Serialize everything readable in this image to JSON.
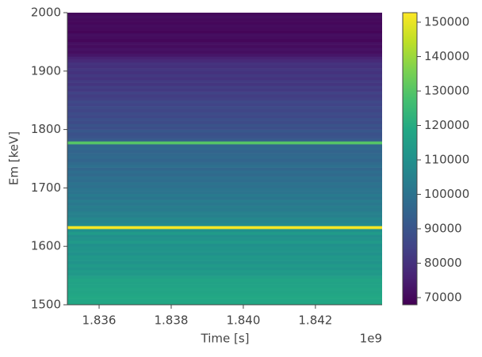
{
  "chart_data": {
    "type": "heatmap",
    "x_label": "Time [s]",
    "y_label": "Em [keV]",
    "x_offset_label": "1e9",
    "xlim": [
      1835120000,
      1843850000
    ],
    "xticks": [
      {
        "value": 1836000000,
        "label": "1.836"
      },
      {
        "value": 1838000000,
        "label": "1.838"
      },
      {
        "value": 1840000000,
        "label": "1.840"
      },
      {
        "value": 1842000000,
        "label": "1.842"
      }
    ],
    "ylim": [
      1500,
      2000
    ],
    "yticks": [
      1500,
      1600,
      1700,
      1800,
      1900,
      2000
    ],
    "colormap": "viridis",
    "clim": [
      67930,
      152760
    ],
    "cticks": [
      70000,
      80000,
      90000,
      100000,
      110000,
      120000,
      130000,
      140000,
      150000
    ],
    "y_edges": [
      1500,
      1505,
      1510,
      1515,
      1520,
      1525,
      1530,
      1535,
      1540,
      1545,
      1550,
      1555,
      1560,
      1565,
      1570,
      1575,
      1580,
      1585,
      1590,
      1595,
      1600,
      1605,
      1610,
      1615,
      1620,
      1625,
      1630,
      1635,
      1640,
      1645,
      1650,
      1655,
      1660,
      1665,
      1670,
      1675,
      1680,
      1685,
      1690,
      1695,
      1700,
      1705,
      1710,
      1715,
      1720,
      1725,
      1730,
      1735,
      1740,
      1745,
      1750,
      1755,
      1760,
      1765,
      1770,
      1775,
      1780,
      1785,
      1790,
      1795,
      1800,
      1805,
      1810,
      1815,
      1820,
      1825,
      1830,
      1835,
      1840,
      1845,
      1850,
      1855,
      1860,
      1865,
      1870,
      1875,
      1880,
      1885,
      1890,
      1895,
      1900,
      1905,
      1910,
      1915,
      1920,
      1925,
      1930,
      1935,
      1940,
      1945,
      1950,
      1955,
      1960,
      1965,
      1970,
      1975,
      1980,
      1985,
      1990,
      1995,
      2000
    ],
    "values": [
      118500,
      118000,
      119000,
      118000,
      117500,
      118000,
      117000,
      116500,
      117500,
      116000,
      113000,
      114000,
      112000,
      113500,
      111000,
      112500,
      113000,
      110500,
      112000,
      111500,
      110000,
      113500,
      111000,
      109500,
      114000,
      110500,
      152000,
      108000,
      106000,
      107000,
      104500,
      105000,
      103000,
      104000,
      102000,
      103500,
      101000,
      102500,
      100500,
      101000,
      99000,
      100000,
      98000,
      99500,
      97000,
      98500,
      96000,
      99000,
      97500,
      95500,
      97000,
      96500,
      95000,
      97000,
      96000,
      130000,
      92000,
      90000,
      89000,
      91000,
      88000,
      89500,
      87000,
      88500,
      86000,
      87500,
      85500,
      87000,
      85000,
      86500,
      84000,
      83000,
      84500,
      82000,
      83500,
      81000,
      82500,
      80500,
      82000,
      80000,
      81500,
      79500,
      80500,
      78000,
      76000,
      73000,
      71000,
      72000,
      70500,
      71500,
      69500,
      70500,
      71000,
      69000,
      70000,
      70500,
      69500,
      70000,
      71000,
      70000
    ]
  }
}
